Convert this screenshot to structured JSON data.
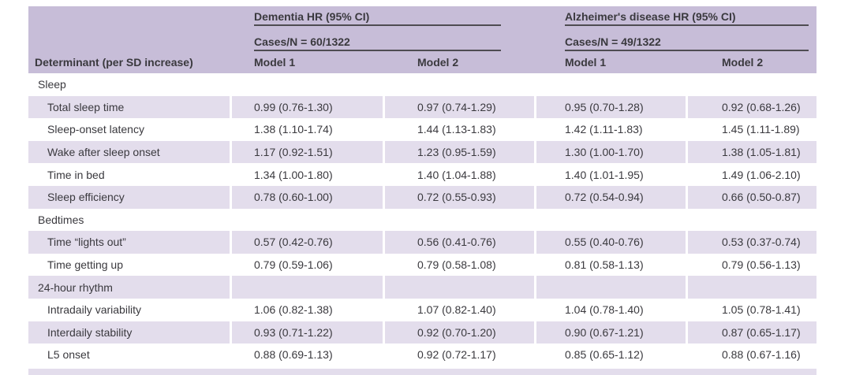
{
  "table": {
    "determinant_header": "Determinant (per SD increase)",
    "groups": [
      {
        "title": "Dementia HR (95% CI)",
        "cases": "Cases/N = 60/1322",
        "models": [
          "Model 1",
          "Model 2"
        ]
      },
      {
        "title": "Alzheimer's disease HR (95% CI)",
        "cases": "Cases/N = 49/1322",
        "models": [
          "Model 1",
          "Model 2"
        ]
      }
    ],
    "sections": [
      {
        "label": "Sleep",
        "rows": [
          {
            "label": "Total sleep time",
            "values": [
              "0.99 (0.76-1.30)",
              "0.97 (0.74-1.29)",
              "0.95 (0.70-1.28)",
              "0.92 (0.68-1.26)"
            ]
          },
          {
            "label": "Sleep-onset latency",
            "values": [
              "1.38 (1.10-1.74)",
              "1.44 (1.13-1.83)",
              "1.42 (1.11-1.83)",
              "1.45 (1.11-1.89)"
            ]
          },
          {
            "label": "Wake after sleep onset",
            "values": [
              "1.17 (0.92-1.51)",
              "1.23 (0.95-1.59)",
              "1.30 (1.00-1.70)",
              "1.38 (1.05-1.81)"
            ]
          },
          {
            "label": "Time in bed",
            "values": [
              "1.34 (1.00-1.80)",
              "1.40 (1.04-1.88)",
              "1.40 (1.01-1.95)",
              "1.49 (1.06-2.10)"
            ]
          },
          {
            "label": "Sleep efficiency",
            "values": [
              "0.78 (0.60-1.00)",
              "0.72 (0.55-0.93)",
              "0.72 (0.54-0.94)",
              "0.66 (0.50-0.87)"
            ]
          }
        ]
      },
      {
        "label": "Bedtimes",
        "rows": [
          {
            "label": "Time “lights out”",
            "values": [
              "0.57 (0.42-0.76)",
              "0.56 (0.41-0.76)",
              "0.55 (0.40-0.76)",
              "0.53 (0.37-0.74)"
            ]
          },
          {
            "label": "Time getting up",
            "values": [
              "0.79 (0.59-1.06)",
              "0.79 (0.58-1.08)",
              "0.81 (0.58-1.13)",
              "0.79 (0.56-1.13)"
            ]
          }
        ]
      },
      {
        "label": "24-hour rhythm",
        "rows": [
          {
            "label": "Intradaily variability",
            "values": [
              "1.06 (0.82-1.38)",
              "1.07 (0.82-1.40)",
              "1.04 (0.78-1.40)",
              "1.05 (0.78-1.41)"
            ]
          },
          {
            "label": "Interdaily stability",
            "values": [
              "0.93 (0.71-1.22)",
              "0.92 (0.70-1.20)",
              "0.90 (0.67-1.21)",
              "0.87 (0.65-1.17)"
            ]
          },
          {
            "label": "L5 onset",
            "values": [
              "0.88 (0.69-1.13)",
              "0.92 (0.72-1.17)",
              "0.85 (0.65-1.12)",
              "0.88 (0.67-1.16)"
            ]
          }
        ]
      }
    ],
    "colors": {
      "header_bg": "#c7bdd8",
      "row_shade": "#e3ddec",
      "rule": "#4e4c52",
      "text": "#3a393e"
    }
  }
}
